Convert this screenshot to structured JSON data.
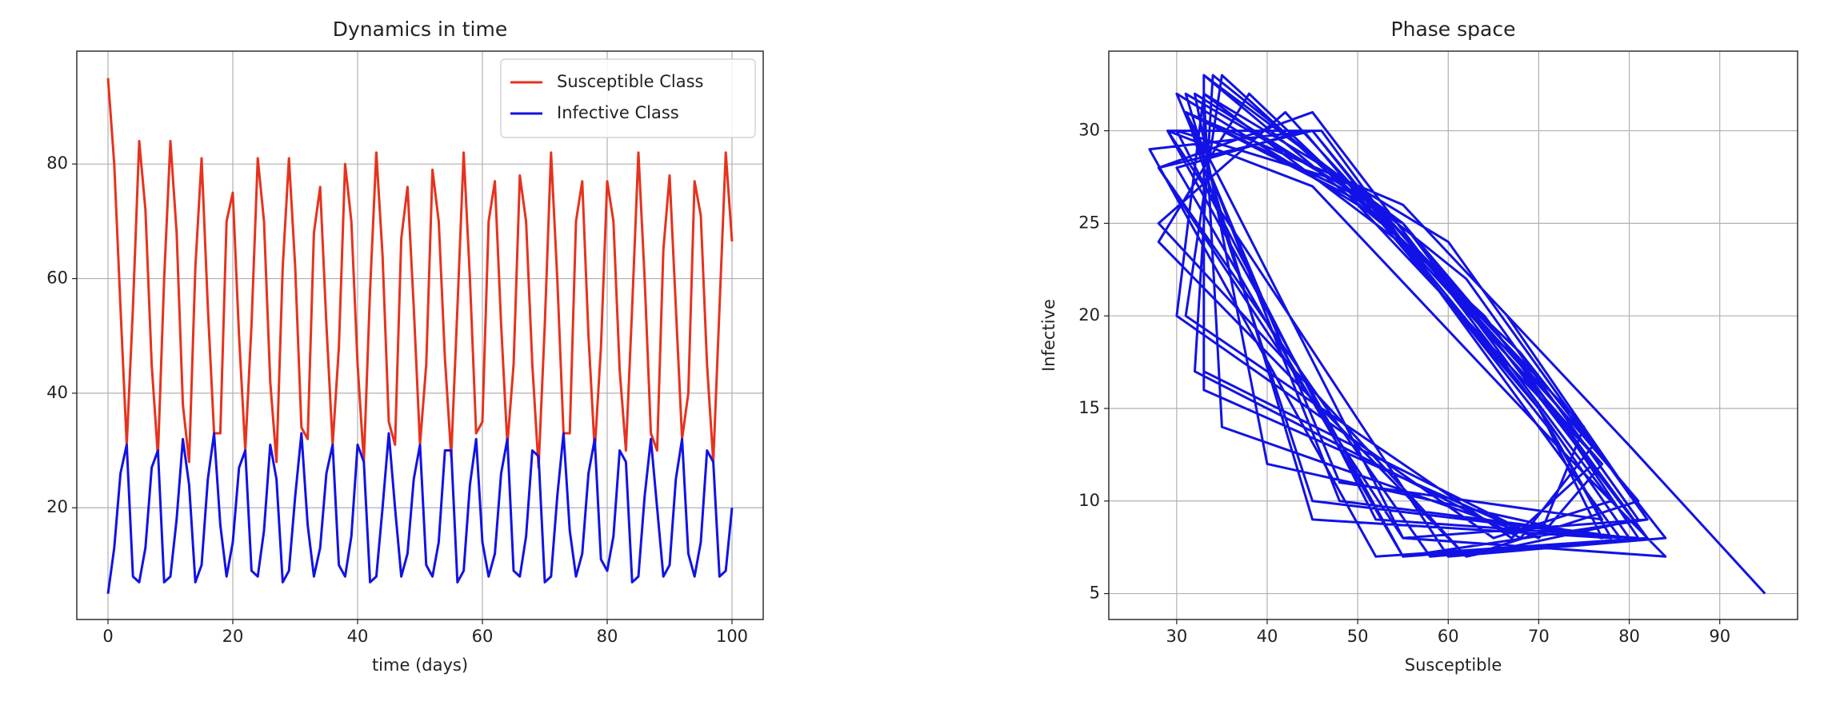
{
  "chart_data": [
    {
      "type": "line",
      "title": "Dynamics in time",
      "x_label": "time (days)",
      "x": [
        0,
        1,
        2,
        3,
        4,
        5,
        6,
        7,
        8,
        9,
        10,
        11,
        12,
        13,
        14,
        15,
        16,
        17,
        18,
        19,
        20,
        21,
        22,
        23,
        24,
        25,
        26,
        27,
        28,
        29,
        30,
        31,
        32,
        33,
        34,
        35,
        36,
        37,
        38,
        39,
        40,
        41,
        42,
        43,
        44,
        45,
        46,
        47,
        48,
        49,
        50,
        51,
        52,
        53,
        54,
        55,
        56,
        57,
        58,
        59,
        60,
        61,
        62,
        63,
        64,
        65,
        66,
        67,
        68,
        69,
        70,
        71,
        72,
        73,
        74,
        75,
        76,
        77,
        78,
        79,
        80,
        81,
        82,
        83,
        84,
        85,
        86,
        87,
        88,
        89,
        90,
        91,
        92,
        93,
        94,
        95,
        96,
        97,
        98,
        99,
        100
      ],
      "series": [
        {
          "name": "Susceptible Class",
          "color": "#e6321e",
          "values": [
            95,
            80,
            55,
            31,
            55,
            84,
            72,
            45,
            29,
            60,
            84,
            68,
            38,
            28,
            62,
            81,
            55,
            33,
            33,
            70,
            75,
            50,
            30,
            52,
            81,
            70,
            42,
            28,
            62,
            81,
            62,
            34,
            32,
            68,
            76,
            52,
            31,
            48,
            80,
            70,
            45,
            28,
            58,
            82,
            64,
            35,
            31,
            67,
            76,
            55,
            31,
            45,
            79,
            70,
            46,
            29,
            55,
            82,
            60,
            33,
            35,
            70,
            77,
            52,
            31,
            45,
            78,
            70,
            45,
            27,
            52,
            82,
            60,
            33,
            33,
            70,
            77,
            50,
            30,
            48,
            77,
            70,
            44,
            30,
            55,
            82,
            60,
            33,
            30,
            65,
            78,
            55,
            32,
            40,
            77,
            71,
            45,
            28,
            55,
            82,
            66.5
          ]
        },
        {
          "name": "Infective Class",
          "color": "#1212e6",
          "values": [
            5,
            13,
            26,
            31,
            8,
            7,
            13,
            27,
            30,
            7,
            8,
            18,
            32,
            24,
            7,
            10,
            25,
            33,
            17,
            8,
            14,
            27,
            30,
            9,
            8,
            16,
            31,
            25,
            7,
            9,
            22,
            33,
            17,
            8,
            13,
            26,
            31,
            10,
            8,
            15,
            31,
            28,
            7,
            8,
            20,
            33,
            20,
            8,
            12,
            25,
            31,
            10,
            8,
            14,
            30,
            30,
            7,
            9,
            24,
            32,
            14,
            8,
            12,
            26,
            32,
            9,
            8,
            15,
            30,
            29,
            7,
            8,
            22,
            33,
            16,
            8,
            12,
            26,
            32,
            11,
            9,
            15,
            30,
            28,
            7,
            8,
            22,
            32,
            20,
            8,
            10,
            25,
            32,
            12,
            8,
            14,
            30,
            28,
            8,
            9,
            20
          ]
        }
      ],
      "xlim": [
        -5,
        105
      ],
      "xticks": [
        0,
        20,
        40,
        60,
        80,
        100
      ],
      "ylim": [
        0.5,
        99.7
      ],
      "yticks": [
        20,
        40,
        60,
        80
      ],
      "grid": true,
      "legend": "upper right"
    },
    {
      "type": "line",
      "title": "Phase space",
      "x_label": "Susceptible",
      "y_label": "Infective",
      "x": [
        95,
        80,
        55,
        31,
        55,
        84,
        72,
        45,
        29,
        60,
        84,
        68,
        38,
        28,
        62,
        81,
        55,
        33,
        33,
        70,
        75,
        50,
        30,
        52,
        81,
        70,
        42,
        28,
        62,
        81,
        62,
        34,
        32,
        68,
        76,
        52,
        31,
        48,
        80,
        70,
        45,
        28,
        58,
        82,
        64,
        35,
        31,
        67,
        76,
        55,
        31,
        45,
        79,
        70,
        46,
        29,
        55,
        82,
        60,
        33,
        35,
        70,
        77,
        52,
        31,
        45,
        78,
        70,
        45,
        27,
        52,
        82,
        60,
        33,
        33,
        70,
        77,
        50,
        30,
        48,
        77,
        70,
        44,
        30,
        55,
        82,
        60,
        33,
        30,
        65,
        78,
        55,
        32,
        40,
        77,
        71,
        45,
        28,
        55,
        82,
        66.5
      ],
      "series": [
        {
          "color": "#1212e6",
          "values": [
            5,
            13,
            26,
            31,
            8,
            7,
            13,
            27,
            30,
            7,
            8,
            18,
            32,
            24,
            7,
            10,
            25,
            33,
            17,
            8,
            14,
            27,
            30,
            9,
            8,
            16,
            31,
            25,
            7,
            9,
            22,
            33,
            17,
            8,
            13,
            26,
            31,
            10,
            8,
            15,
            31,
            28,
            7,
            8,
            20,
            33,
            20,
            8,
            12,
            25,
            31,
            10,
            8,
            14,
            30,
            30,
            7,
            9,
            24,
            32,
            14,
            8,
            12,
            26,
            32,
            9,
            8,
            15,
            30,
            29,
            7,
            8,
            22,
            33,
            16,
            8,
            12,
            26,
            32,
            11,
            9,
            15,
            30,
            28,
            7,
            8,
            22,
            32,
            20,
            8,
            10,
            25,
            32,
            12,
            8,
            14,
            30,
            28,
            8,
            9,
            20
          ]
        }
      ],
      "xlim": [
        22.5,
        98.6
      ],
      "xticks": [
        30,
        40,
        50,
        60,
        70,
        80,
        90
      ],
      "ylim": [
        3.6,
        34.3
      ],
      "yticks": [
        5,
        10,
        15,
        20,
        25,
        30
      ],
      "grid": true
    }
  ]
}
